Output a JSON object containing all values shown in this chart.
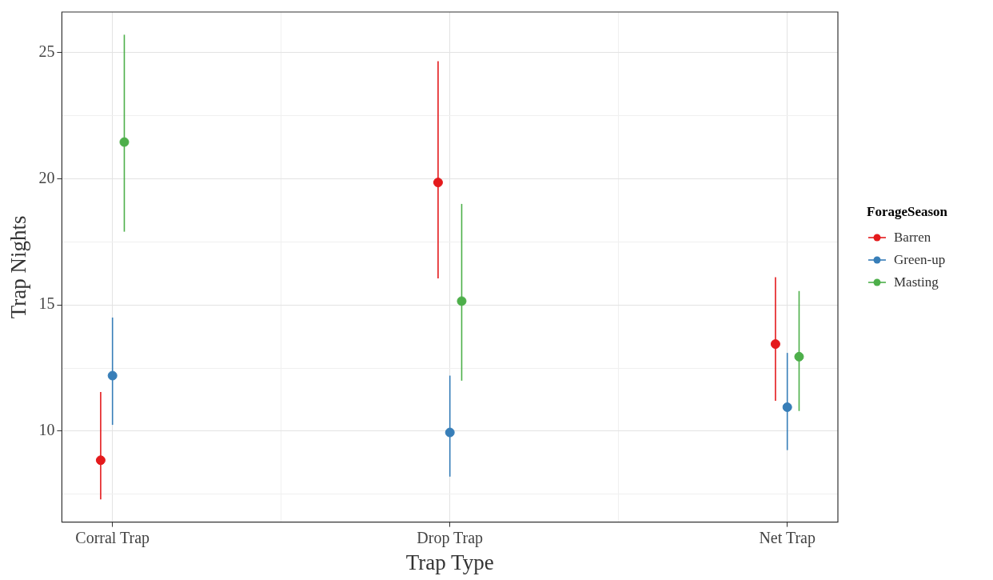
{
  "chart_data": {
    "type": "scatter",
    "xlabel": "Trap Type",
    "ylabel": "Trap Nights",
    "legend_title": "ForageSeason",
    "legend": "right",
    "grid": true,
    "marker": "circle",
    "categories": [
      "Corral Trap",
      "Drop Trap",
      "Net Trap"
    ],
    "ylim": [
      6.4,
      26.6
    ],
    "yticks": [
      {
        "value": 7.5,
        "label": null
      },
      10,
      {
        "value": 12.5,
        "label": null
      },
      15,
      {
        "value": 17.5,
        "label": null
      },
      20,
      {
        "value": 22.5,
        "label": null
      },
      25
    ],
    "series": [
      {
        "name": "Barren",
        "color": "#e41a1c",
        "values": [
          8.85,
          19.85,
          13.45
        ],
        "errors": [
          [
            7.3,
            11.55
          ],
          [
            16.05,
            24.65
          ],
          [
            11.2,
            16.1
          ]
        ]
      },
      {
        "name": "Green-up",
        "color": "#377eb8",
        "values": [
          12.2,
          9.95,
          10.95
        ],
        "errors": [
          [
            10.25,
            14.5
          ],
          [
            8.2,
            12.2
          ],
          [
            9.25,
            13.1
          ]
        ]
      },
      {
        "name": "Masting",
        "color": "#4daf4a",
        "values": [
          21.45,
          15.15,
          12.95
        ],
        "errors": [
          [
            17.9,
            25.7
          ],
          [
            12.0,
            19.0
          ],
          [
            10.8,
            15.55
          ]
        ]
      }
    ]
  }
}
